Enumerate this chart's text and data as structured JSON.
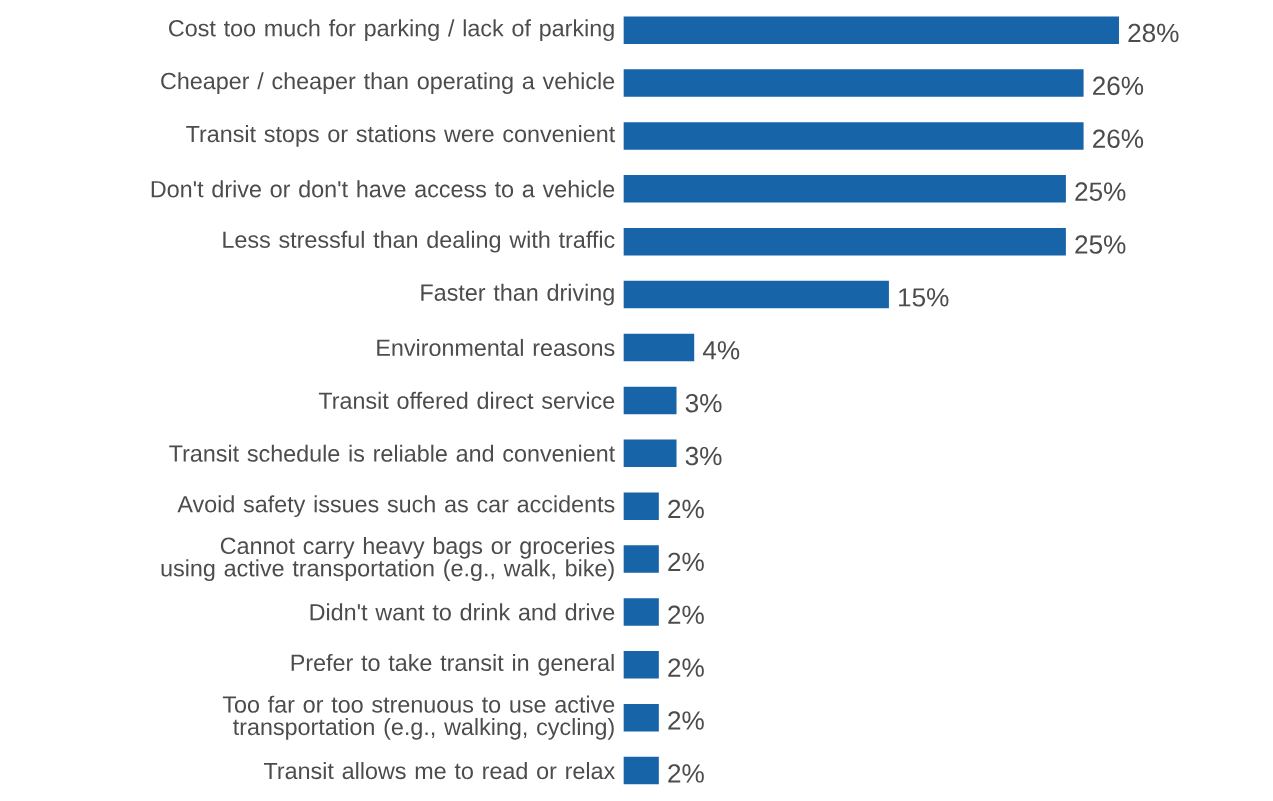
{
  "chart_data": {
    "type": "bar",
    "orientation": "horizontal",
    "color": "#1764a8",
    "categories": [
      "Cost too much for parking / lack of parking",
      "Cheaper / cheaper than operating a vehicle",
      "Transit stops or stations were convenient",
      "Don't drive or don't have access to a vehicle",
      "Less stressful than dealing with traffic",
      "Faster than driving",
      "Environmental reasons",
      "Transit offered direct service",
      "Transit schedule is reliable and convenient",
      "Avoid safety issues such as car accidents",
      "Cannot carry heavy bags or groceries using active transportation (e.g., walk, bike)",
      "Didn't want to drink and drive",
      "Prefer to take transit in general",
      "Too far or too strenuous to use active transportation (e.g., walking, cycling)",
      "Transit allows me to read or relax"
    ],
    "values": [
      28,
      26,
      26,
      25,
      25,
      15,
      4,
      3,
      3,
      2,
      2,
      2,
      2,
      2,
      2
    ],
    "value_labels": [
      "28%",
      "26%",
      "26%",
      "25%",
      "25%",
      "15%",
      "4%",
      "3%",
      "3%",
      "2%",
      "2%",
      "2%",
      "2%",
      "2%",
      "2%"
    ]
  }
}
